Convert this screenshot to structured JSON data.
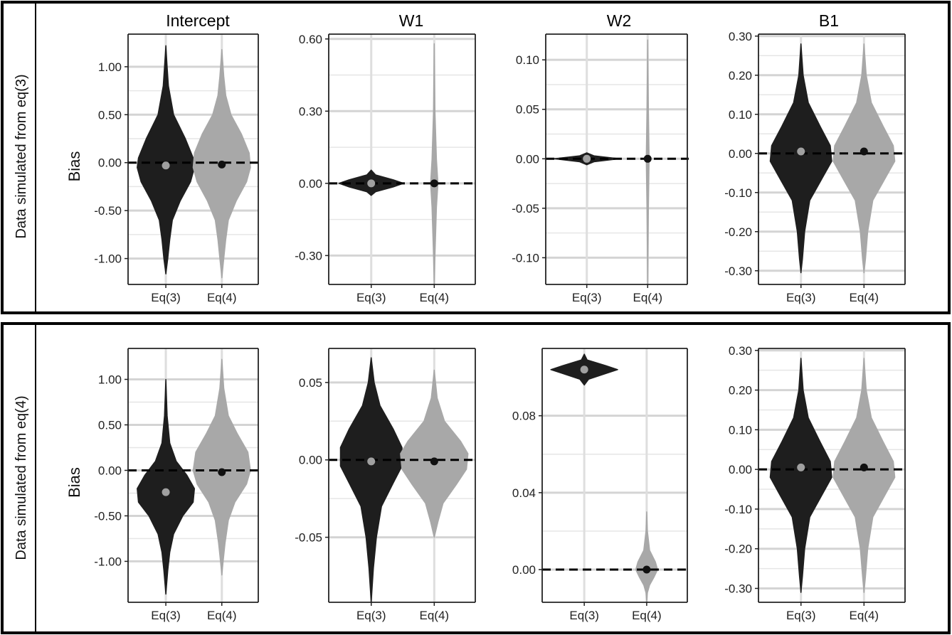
{
  "rows": [
    {
      "label": "Data simulated from eq(3)"
    },
    {
      "label": "Data simulated from eq(4)"
    }
  ],
  "column_titles": [
    "Intercept",
    "W1",
    "W2",
    "B1"
  ],
  "ylabel": "Bias",
  "categories": [
    "Eq(3)",
    "Eq(4)"
  ],
  "colors": {
    "eq3_fill": "#1e1e1e",
    "eq4_fill": "#a8a8a8",
    "eq3_point": "#a0a0a0",
    "eq4_point": "#111111",
    "grid": "#d9d9d9"
  },
  "chart_data": [
    {
      "type": "violin",
      "row": 0,
      "title": "Intercept",
      "ylabel": "Bias",
      "categories": [
        "Eq(3)",
        "Eq(4)"
      ],
      "ylim": [
        -1.27,
        1.34
      ],
      "yticks": [
        "1.00",
        "0.50",
        "0.00",
        "-0.50",
        "-1.00"
      ],
      "ytick_values": [
        1.0,
        0.5,
        0.0,
        -0.5,
        -1.0
      ],
      "reference_line": 0,
      "series": [
        {
          "name": "Eq(3)",
          "mean": -0.03,
          "shape": [
            [
              1.22,
              0.0
            ],
            [
              1.0,
              0.02
            ],
            [
              0.8,
              0.04
            ],
            [
              0.5,
              0.12
            ],
            [
              0.25,
              0.3
            ],
            [
              0.05,
              0.42
            ],
            [
              -0.05,
              0.44
            ],
            [
              -0.2,
              0.38
            ],
            [
              -0.4,
              0.22
            ],
            [
              -0.6,
              0.1
            ],
            [
              -0.8,
              0.06
            ],
            [
              -1.0,
              0.03
            ],
            [
              -1.16,
              0.0
            ]
          ]
        },
        {
          "name": "Eq(4)",
          "mean": -0.02,
          "shape": [
            [
              1.18,
              0.0
            ],
            [
              0.9,
              0.03
            ],
            [
              0.7,
              0.06
            ],
            [
              0.5,
              0.14
            ],
            [
              0.3,
              0.3
            ],
            [
              0.1,
              0.42
            ],
            [
              -0.05,
              0.44
            ],
            [
              -0.2,
              0.38
            ],
            [
              -0.4,
              0.22
            ],
            [
              -0.6,
              0.1
            ],
            [
              -0.8,
              0.06
            ],
            [
              -1.0,
              0.03
            ],
            [
              -1.2,
              0.0
            ]
          ]
        }
      ]
    },
    {
      "type": "violin",
      "row": 0,
      "title": "W1",
      "ylabel": "",
      "categories": [
        "Eq(3)",
        "Eq(4)"
      ],
      "ylim": [
        -0.42,
        0.62
      ],
      "yticks": [
        "0.60",
        "0.30",
        "0.00",
        "-0.30"
      ],
      "ytick_values": [
        0.6,
        0.3,
        0.0,
        -0.3
      ],
      "reference_line": 0,
      "series": [
        {
          "name": "Eq(3)",
          "mean": 0.0,
          "shape": [
            [
              0.055,
              0.0
            ],
            [
              0.035,
              0.06
            ],
            [
              0.015,
              0.3
            ],
            [
              0.0,
              0.44
            ],
            [
              -0.015,
              0.3
            ],
            [
              -0.035,
              0.06
            ],
            [
              -0.05,
              0.0
            ]
          ]
        },
        {
          "name": "Eq(4)",
          "mean": 0.0,
          "shape": [
            [
              0.58,
              0.0
            ],
            [
              0.3,
              0.01
            ],
            [
              0.1,
              0.03
            ],
            [
              0.0,
              0.05
            ],
            [
              -0.1,
              0.03
            ],
            [
              -0.3,
              0.01
            ],
            [
              -0.42,
              0.0
            ]
          ]
        }
      ]
    },
    {
      "type": "violin",
      "row": 0,
      "title": "W2",
      "ylabel": "",
      "categories": [
        "Eq(3)",
        "Eq(4)"
      ],
      "ylim": [
        -0.127,
        0.126
      ],
      "yticks": [
        "0.10",
        "0.05",
        "0.00",
        "-0.05",
        "-0.10"
      ],
      "ytick_values": [
        0.1,
        0.05,
        0.0,
        -0.05,
        -0.1
      ],
      "reference_line": 0,
      "series": [
        {
          "name": "Eq(3)",
          "mean": 0.0,
          "shape": [
            [
              0.006,
              0.0
            ],
            [
              0.003,
              0.1
            ],
            [
              0.0,
              0.46
            ],
            [
              -0.003,
              0.1
            ],
            [
              -0.006,
              0.0
            ]
          ]
        },
        {
          "name": "Eq(4)",
          "mean": 0.0,
          "shape": [
            [
              0.12,
              0.0
            ],
            [
              0.05,
              0.01
            ],
            [
              0.0,
              0.02
            ],
            [
              -0.05,
              0.01
            ],
            [
              -0.127,
              0.0
            ]
          ]
        }
      ]
    },
    {
      "type": "violin",
      "row": 0,
      "title": "B1",
      "ylabel": "",
      "categories": [
        "Eq(3)",
        "Eq(4)"
      ],
      "ylim": [
        -0.335,
        0.305
      ],
      "yticks": [
        "0.30",
        "0.20",
        "0.10",
        "0.00",
        "-0.10",
        "-0.20",
        "-0.30"
      ],
      "ytick_values": [
        0.3,
        0.2,
        0.1,
        0.0,
        -0.1,
        -0.2,
        -0.3
      ],
      "reference_line": 0,
      "series": [
        {
          "name": "Eq(3)",
          "mean": 0.005,
          "shape": [
            [
              0.28,
              0.0
            ],
            [
              0.2,
              0.03
            ],
            [
              0.13,
              0.1
            ],
            [
              0.07,
              0.26
            ],
            [
              0.02,
              0.4
            ],
            [
              -0.02,
              0.42
            ],
            [
              -0.06,
              0.3
            ],
            [
              -0.12,
              0.12
            ],
            [
              -0.2,
              0.05
            ],
            [
              -0.27,
              0.02
            ],
            [
              -0.305,
              0.0
            ]
          ]
        },
        {
          "name": "Eq(4)",
          "mean": 0.005,
          "shape": [
            [
              0.28,
              0.0
            ],
            [
              0.2,
              0.03
            ],
            [
              0.13,
              0.1
            ],
            [
              0.07,
              0.26
            ],
            [
              0.02,
              0.4
            ],
            [
              -0.02,
              0.42
            ],
            [
              -0.06,
              0.3
            ],
            [
              -0.12,
              0.12
            ],
            [
              -0.2,
              0.05
            ],
            [
              -0.27,
              0.02
            ],
            [
              -0.305,
              0.0
            ]
          ]
        }
      ]
    },
    {
      "type": "violin",
      "row": 1,
      "title": "Intercept",
      "ylabel": "Bias",
      "categories": [
        "Eq(3)",
        "Eq(4)"
      ],
      "ylim": [
        -1.45,
        1.34
      ],
      "yticks": [
        "1.00",
        "0.50",
        "0.00",
        "-0.50",
        "-1.00"
      ],
      "ytick_values": [
        1.0,
        0.5,
        0.0,
        -0.5,
        -1.0
      ],
      "reference_line": 0,
      "series": [
        {
          "name": "Eq(3)",
          "mean": -0.24,
          "shape": [
            [
              1.0,
              0.0
            ],
            [
              0.6,
              0.02
            ],
            [
              0.3,
              0.06
            ],
            [
              0.1,
              0.16
            ],
            [
              -0.05,
              0.32
            ],
            [
              -0.2,
              0.44
            ],
            [
              -0.35,
              0.42
            ],
            [
              -0.5,
              0.26
            ],
            [
              -0.7,
              0.12
            ],
            [
              -0.9,
              0.06
            ],
            [
              -1.1,
              0.03
            ],
            [
              -1.36,
              0.0
            ]
          ]
        },
        {
          "name": "Eq(4)",
          "mean": -0.02,
          "shape": [
            [
              1.22,
              0.0
            ],
            [
              0.9,
              0.03
            ],
            [
              0.6,
              0.1
            ],
            [
              0.4,
              0.24
            ],
            [
              0.2,
              0.4
            ],
            [
              0.0,
              0.44
            ],
            [
              -0.15,
              0.38
            ],
            [
              -0.35,
              0.2
            ],
            [
              -0.55,
              0.1
            ],
            [
              -0.8,
              0.05
            ],
            [
              -1.0,
              0.02
            ],
            [
              -1.15,
              0.0
            ]
          ]
        }
      ]
    },
    {
      "type": "violin",
      "row": 1,
      "title": "W1",
      "ylabel": "",
      "categories": [
        "Eq(3)",
        "Eq(4)"
      ],
      "ylim": [
        -0.092,
        0.072
      ],
      "yticks": [
        "0.05",
        "0.00",
        "-0.05"
      ],
      "ytick_values": [
        0.05,
        0.0,
        -0.05
      ],
      "reference_line": 0,
      "series": [
        {
          "name": "Eq(3)",
          "mean": -0.001,
          "shape": [
            [
              0.066,
              0.0
            ],
            [
              0.05,
              0.04
            ],
            [
              0.035,
              0.12
            ],
            [
              0.02,
              0.3
            ],
            [
              0.008,
              0.42
            ],
            [
              -0.004,
              0.42
            ],
            [
              -0.015,
              0.3
            ],
            [
              -0.03,
              0.14
            ],
            [
              -0.05,
              0.07
            ],
            [
              -0.07,
              0.03
            ],
            [
              -0.092,
              0.0
            ]
          ]
        },
        {
          "name": "Eq(4)",
          "mean": -0.001,
          "shape": [
            [
              0.058,
              0.0
            ],
            [
              0.04,
              0.04
            ],
            [
              0.025,
              0.14
            ],
            [
              0.012,
              0.36
            ],
            [
              0.004,
              0.46
            ],
            [
              -0.006,
              0.44
            ],
            [
              -0.016,
              0.3
            ],
            [
              -0.028,
              0.12
            ],
            [
              -0.04,
              0.05
            ],
            [
              -0.05,
              0.0
            ]
          ]
        }
      ]
    },
    {
      "type": "violin",
      "row": 1,
      "title": "W2",
      "ylabel": "",
      "categories": [
        "Eq(3)",
        "Eq(4)"
      ],
      "ylim": [
        -0.017,
        0.115
      ],
      "yticks": [
        "0.08",
        "0.04",
        "0.00"
      ],
      "ytick_values": [
        0.08,
        0.04,
        0.0
      ],
      "reference_line": 0,
      "series": [
        {
          "name": "Eq(3)",
          "mean": 0.104,
          "shape": [
            [
              0.112,
              0.0
            ],
            [
              0.109,
              0.04
            ],
            [
              0.106,
              0.3
            ],
            [
              0.104,
              0.46
            ],
            [
              0.102,
              0.3
            ],
            [
              0.099,
              0.06
            ],
            [
              0.096,
              0.0
            ]
          ]
        },
        {
          "name": "Eq(4)",
          "mean": 0.0,
          "shape": [
            [
              0.03,
              0.0
            ],
            [
              0.02,
              0.01
            ],
            [
              0.01,
              0.04
            ],
            [
              0.004,
              0.12
            ],
            [
              0.0,
              0.15
            ],
            [
              -0.004,
              0.1
            ],
            [
              -0.008,
              0.04
            ],
            [
              -0.012,
              0.01
            ],
            [
              -0.017,
              0.0
            ]
          ]
        }
      ]
    },
    {
      "type": "violin",
      "row": 1,
      "title": "B1",
      "ylabel": "",
      "categories": [
        "Eq(3)",
        "Eq(4)"
      ],
      "ylim": [
        -0.335,
        0.305
      ],
      "yticks": [
        "0.30",
        "0.20",
        "0.10",
        "0.00",
        "-0.10",
        "-0.20",
        "-0.30"
      ],
      "ytick_values": [
        0.3,
        0.2,
        0.1,
        0.0,
        -0.1,
        -0.2,
        -0.3
      ],
      "reference_line": 0,
      "series": [
        {
          "name": "Eq(3)",
          "mean": 0.005,
          "shape": [
            [
              0.28,
              0.0
            ],
            [
              0.2,
              0.03
            ],
            [
              0.13,
              0.1
            ],
            [
              0.07,
              0.26
            ],
            [
              0.02,
              0.4
            ],
            [
              -0.02,
              0.42
            ],
            [
              -0.06,
              0.3
            ],
            [
              -0.12,
              0.12
            ],
            [
              -0.2,
              0.05
            ],
            [
              -0.27,
              0.02
            ],
            [
              -0.31,
              0.0
            ]
          ]
        },
        {
          "name": "Eq(4)",
          "mean": 0.005,
          "shape": [
            [
              0.28,
              0.0
            ],
            [
              0.2,
              0.03
            ],
            [
              0.13,
              0.1
            ],
            [
              0.07,
              0.26
            ],
            [
              0.02,
              0.4
            ],
            [
              -0.02,
              0.42
            ],
            [
              -0.06,
              0.3
            ],
            [
              -0.12,
              0.12
            ],
            [
              -0.2,
              0.05
            ],
            [
              -0.27,
              0.02
            ],
            [
              -0.31,
              0.0
            ]
          ]
        }
      ]
    }
  ]
}
